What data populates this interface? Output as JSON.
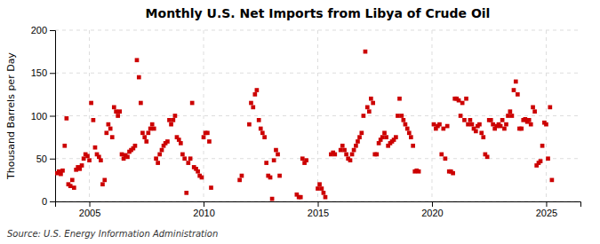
{
  "chart_data": {
    "type": "scatter",
    "title": "Monthly U.S. Net Imports from Libya of Crude Oil",
    "ylabel": "Thousand Barrels per Day",
    "annotations": [
      "Source: U.S. Energy Information Administration"
    ],
    "color": "#cc0000",
    "marker": "square",
    "grid": true,
    "xlim": [
      2003.5,
      2026.5
    ],
    "ylim": [
      0,
      200
    ],
    "xticks": [
      2005,
      2010,
      2015,
      2020,
      2025
    ],
    "yticks": [
      0,
      50,
      100,
      150,
      200
    ],
    "x": [
      2003.58,
      2003.67,
      2003.75,
      2003.83,
      2003.92,
      2004.0,
      2004.08,
      2004.17,
      2004.25,
      2004.33,
      2004.42,
      2004.5,
      2004.58,
      2004.67,
      2004.75,
      2004.83,
      2004.92,
      2005.0,
      2005.08,
      2005.17,
      2005.25,
      2005.33,
      2005.42,
      2005.5,
      2005.58,
      2005.67,
      2005.75,
      2005.83,
      2005.92,
      2006.0,
      2006.08,
      2006.17,
      2006.25,
      2006.33,
      2006.42,
      2006.5,
      2006.58,
      2006.67,
      2006.75,
      2006.83,
      2006.92,
      2007.0,
      2007.08,
      2007.17,
      2007.25,
      2007.33,
      2007.42,
      2007.5,
      2007.58,
      2007.67,
      2007.75,
      2007.83,
      2007.92,
      2008.0,
      2008.08,
      2008.17,
      2008.25,
      2008.33,
      2008.42,
      2008.5,
      2008.58,
      2008.67,
      2008.75,
      2008.83,
      2008.92,
      2009.0,
      2009.08,
      2009.17,
      2009.25,
      2009.33,
      2009.42,
      2009.5,
      2009.58,
      2009.67,
      2009.75,
      2009.83,
      2009.92,
      2010.0,
      2010.08,
      2010.17,
      2010.25,
      2010.33,
      2011.58,
      2011.67,
      2012.0,
      2012.08,
      2012.17,
      2012.25,
      2012.33,
      2012.42,
      2012.5,
      2012.58,
      2012.67,
      2012.75,
      2012.83,
      2012.92,
      2013.0,
      2013.08,
      2013.17,
      2013.25,
      2013.33,
      2014.08,
      2014.17,
      2014.25,
      2014.33,
      2014.42,
      2014.5,
      2015.0,
      2015.08,
      2015.17,
      2015.25,
      2015.33,
      2015.58,
      2015.67,
      2015.75,
      2016.0,
      2016.08,
      2016.17,
      2016.25,
      2016.33,
      2016.42,
      2016.5,
      2016.58,
      2016.67,
      2016.75,
      2016.83,
      2016.92,
      2017.0,
      2017.08,
      2017.17,
      2017.25,
      2017.33,
      2017.42,
      2017.5,
      2017.58,
      2017.67,
      2017.75,
      2017.83,
      2017.92,
      2018.0,
      2018.08,
      2018.17,
      2018.25,
      2018.33,
      2018.42,
      2018.5,
      2018.58,
      2018.67,
      2018.75,
      2018.83,
      2018.92,
      2019.0,
      2019.08,
      2019.17,
      2019.25,
      2019.33,
      2019.42,
      2020.08,
      2020.17,
      2020.25,
      2020.33,
      2020.42,
      2020.5,
      2020.58,
      2020.67,
      2020.75,
      2020.83,
      2020.92,
      2021.0,
      2021.08,
      2021.17,
      2021.25,
      2021.33,
      2021.42,
      2021.5,
      2021.58,
      2021.67,
      2021.75,
      2021.83,
      2021.92,
      2022.0,
      2022.08,
      2022.17,
      2022.25,
      2022.33,
      2022.42,
      2022.5,
      2022.58,
      2022.67,
      2022.75,
      2022.83,
      2022.92,
      2023.0,
      2023.08,
      2023.17,
      2023.25,
      2023.33,
      2023.42,
      2023.5,
      2023.58,
      2023.67,
      2023.75,
      2023.83,
      2023.92,
      2024.0,
      2024.08,
      2024.17,
      2024.25,
      2024.33,
      2024.42,
      2024.5,
      2024.58,
      2024.67,
      2024.75,
      2024.83,
      2024.92,
      2025.0,
      2025.08,
      2025.17,
      2025.25
    ],
    "values": [
      33,
      35,
      32,
      36,
      65,
      97,
      20,
      18,
      25,
      16,
      37,
      40,
      38,
      42,
      50,
      55,
      53,
      48,
      115,
      95,
      63,
      55,
      52,
      48,
      20,
      25,
      80,
      90,
      85,
      75,
      110,
      105,
      100,
      105,
      55,
      50,
      54,
      52,
      58,
      60,
      62,
      65,
      165,
      145,
      115,
      80,
      75,
      70,
      80,
      85,
      90,
      85,
      50,
      45,
      55,
      60,
      65,
      68,
      70,
      95,
      90,
      95,
      100,
      75,
      72,
      68,
      55,
      50,
      10,
      45,
      50,
      115,
      40,
      38,
      35,
      30,
      28,
      75,
      80,
      80,
      70,
      16,
      25,
      30,
      90,
      115,
      110,
      125,
      130,
      95,
      85,
      80,
      75,
      45,
      30,
      28,
      3,
      48,
      60,
      55,
      30,
      8,
      5,
      5,
      50,
      45,
      48,
      15,
      20,
      15,
      10,
      5,
      55,
      57,
      55,
      60,
      65,
      60,
      55,
      50,
      48,
      55,
      60,
      65,
      70,
      75,
      80,
      100,
      175,
      110,
      105,
      120,
      115,
      55,
      55,
      68,
      72,
      75,
      80,
      75,
      65,
      68,
      70,
      72,
      75,
      100,
      120,
      100,
      95,
      90,
      85,
      80,
      75,
      65,
      35,
      36,
      35,
      90,
      85,
      88,
      90,
      55,
      85,
      50,
      88,
      35,
      35,
      33,
      120,
      120,
      118,
      100,
      115,
      95,
      120,
      90,
      95,
      90,
      85,
      82,
      88,
      90,
      80,
      75,
      55,
      52,
      95,
      95,
      90,
      85,
      88,
      90,
      88,
      95,
      85,
      90,
      100,
      105,
      100,
      130,
      140,
      125,
      85,
      85,
      95,
      96,
      93,
      95,
      90,
      110,
      105,
      42,
      45,
      47,
      65,
      92,
      90,
      50,
      110,
      25
    ]
  }
}
